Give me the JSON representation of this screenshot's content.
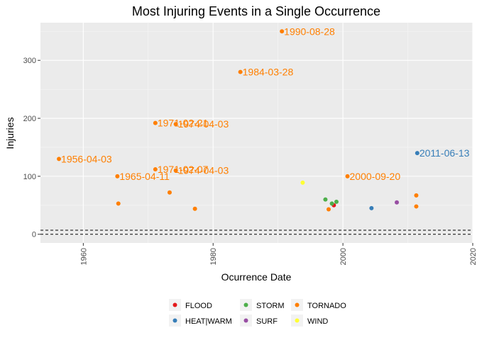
{
  "chart_data": {
    "type": "scatter",
    "title": "Most Injuring Events in a Single Occurrence",
    "xlabel": "Ocurrence Date",
    "ylabel": "Injuries",
    "xlim": [
      1953.4,
      2020
    ],
    "ylim": [
      -15,
      365
    ],
    "x_ticks": [
      1960,
      1980,
      2000,
      2020
    ],
    "y_ticks": [
      0,
      100,
      200,
      300
    ],
    "grid": true,
    "legend_position": "bottom",
    "reference_lines": [
      {
        "y": 0,
        "style": "dashed"
      },
      {
        "y": 7,
        "style": "dashed"
      }
    ],
    "series": [
      {
        "name": "FLOOD",
        "color": "#e41a1c",
        "points": [
          {
            "x": 1998.6,
            "y": 50
          }
        ]
      },
      {
        "name": "HEAT|WARM",
        "color": "#377eb8",
        "points": [
          {
            "x": 2004.4,
            "y": 45
          },
          {
            "x": 2011.45,
            "y": 140,
            "label": "2011-06-13"
          }
        ]
      },
      {
        "name": "STORM",
        "color": "#4daf4a",
        "points": [
          {
            "x": 1997.3,
            "y": 60
          },
          {
            "x": 1998.3,
            "y": 53
          },
          {
            "x": 1999.0,
            "y": 56
          }
        ]
      },
      {
        "name": "SURF",
        "color": "#984ea3",
        "points": [
          {
            "x": 2008.3,
            "y": 55
          }
        ]
      },
      {
        "name": "TORNADO",
        "color": "#ff7f00",
        "points": [
          {
            "x": 1956.25,
            "y": 130,
            "label": "1956-04-03"
          },
          {
            "x": 1965.25,
            "y": 100,
            "label": "1965-04-11"
          },
          {
            "x": 1965.4,
            "y": 53
          },
          {
            "x": 1971.1,
            "y": 192,
            "label": "1971-02-21"
          },
          {
            "x": 1971.1,
            "y": 112,
            "label": "1971-02-07"
          },
          {
            "x": 1973.3,
            "y": 72
          },
          {
            "x": 1974.25,
            "y": 190,
            "label": "1974-04-03"
          },
          {
            "x": 1974.25,
            "y": 110,
            "label": "1974-04-03"
          },
          {
            "x": 1977.2,
            "y": 44
          },
          {
            "x": 1984.2,
            "y": 280,
            "label": "1984-03-28"
          },
          {
            "x": 1990.6,
            "y": 350,
            "label": "1990-08-28"
          },
          {
            "x": 1997.8,
            "y": 43
          },
          {
            "x": 2000.7,
            "y": 100,
            "label": "2000-09-20"
          },
          {
            "x": 2011.3,
            "y": 67
          },
          {
            "x": 2011.3,
            "y": 48
          }
        ]
      },
      {
        "name": "WIND",
        "color": "#ffff33",
        "points": [
          {
            "x": 1993.8,
            "y": 89
          }
        ]
      }
    ]
  }
}
